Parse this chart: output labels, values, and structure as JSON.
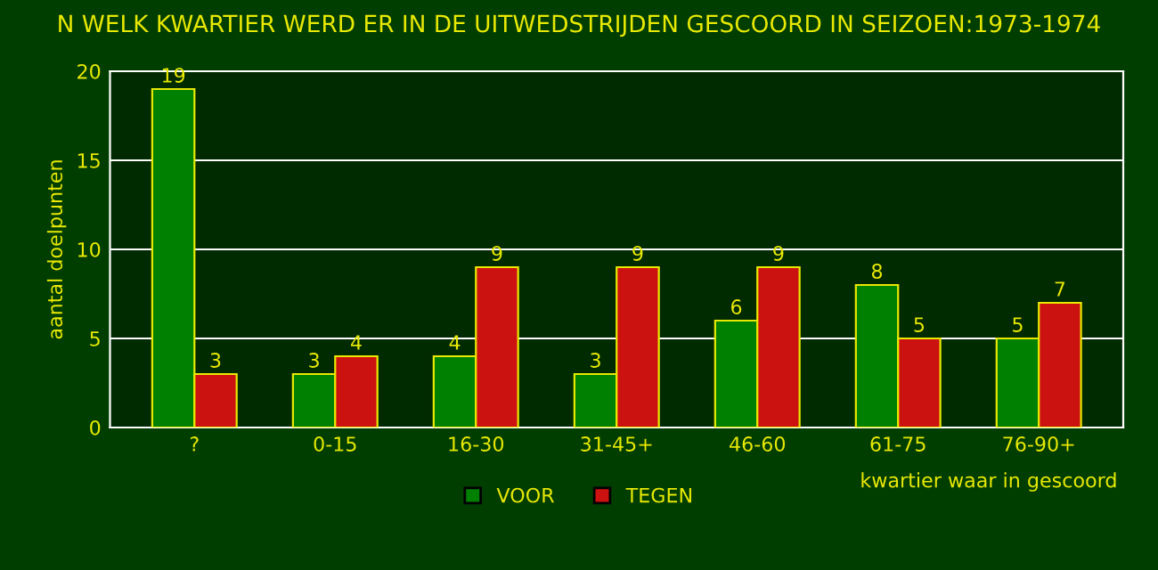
{
  "chart_data": {
    "type": "bar",
    "title": "N WELK KWARTIER WERD ER IN DE UITWEDSTRIJDEN GESCOORD IN SEIZOEN:1973-1974",
    "xlabel": "kwartier waar in gescoord",
    "ylabel": "aantal doelpunten",
    "categories": [
      "?",
      "0-15",
      "16-30",
      "31-45+",
      "46-60",
      "61-75",
      "76-90+"
    ],
    "series": [
      {
        "name": "VOOR",
        "color": "#008000",
        "values": [
          19,
          3,
          4,
          3,
          6,
          8,
          5
        ]
      },
      {
        "name": "TEGEN",
        "color": "#cc1111",
        "values": [
          3,
          4,
          9,
          9,
          9,
          5,
          7
        ]
      }
    ],
    "ylim": [
      0,
      20
    ],
    "yticks": [
      0,
      5,
      10,
      15,
      20
    ],
    "grid": "y",
    "legend": "bottom",
    "data_labels": true
  }
}
